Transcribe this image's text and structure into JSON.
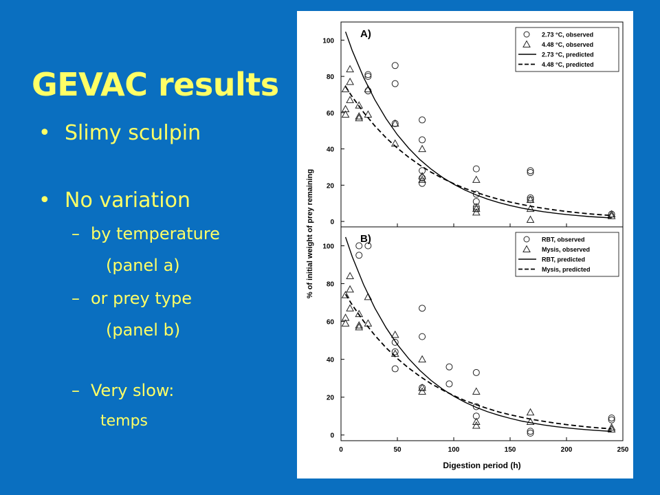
{
  "slide": {
    "title": "GEVAC results",
    "bullets": [
      {
        "level": 1,
        "marker": "•",
        "text": "Slimy sculpin"
      },
      {
        "level": 1,
        "marker": "•",
        "text": "No variation"
      },
      {
        "level": 2,
        "marker": "–",
        "text": "by temperature"
      },
      {
        "level": 2,
        "marker": "",
        "text": "(panel a)"
      },
      {
        "level": 2,
        "marker": "–",
        "text": "or prey type"
      },
      {
        "level": 2,
        "marker": "",
        "text": "(panel b)"
      },
      {
        "level": 2,
        "marker": "–",
        "text": "Very slow:"
      },
      {
        "level": 3,
        "marker": "",
        "text": "temps"
      }
    ],
    "colors": {
      "background": "#0a6fc0",
      "text": "#ffff66"
    }
  },
  "chart_data": [
    {
      "type": "scatter",
      "panel_label": "A)",
      "xlabel": "Digestion period (h)",
      "ylabel": "% of initial weight of prey remaining",
      "xlim": [
        0,
        250
      ],
      "ylim": [
        -3,
        110
      ],
      "yticks": [
        0,
        20,
        40,
        60,
        80,
        100
      ],
      "xticks": [
        0,
        50,
        100,
        150,
        200,
        250
      ],
      "show_x_tick_labels": false,
      "legend_position": "top-right",
      "series": [
        {
          "name": "2.73 °C, observed",
          "marker": "circle",
          "points": [
            [
              24,
              81
            ],
            [
              24,
              80
            ],
            [
              24,
              72
            ],
            [
              48,
              86
            ],
            [
              48,
              76
            ],
            [
              48,
              54
            ],
            [
              72,
              56
            ],
            [
              72,
              45
            ],
            [
              72,
              28
            ],
            [
              72,
              24
            ],
            [
              72,
              21
            ],
            [
              120,
              29
            ],
            [
              120,
              15
            ],
            [
              120,
              11
            ],
            [
              120,
              8
            ],
            [
              120,
              7
            ],
            [
              168,
              28
            ],
            [
              168,
              27
            ],
            [
              168,
              13
            ],
            [
              168,
              12
            ],
            [
              240,
              4
            ]
          ]
        },
        {
          "name": "4.48 °C, observed",
          "marker": "triangle",
          "points": [
            [
              4,
              73
            ],
            [
              4,
              62
            ],
            [
              4,
              59
            ],
            [
              8,
              84
            ],
            [
              8,
              77
            ],
            [
              8,
              67
            ],
            [
              16,
              64
            ],
            [
              16,
              58
            ],
            [
              16,
              57
            ],
            [
              24,
              73
            ],
            [
              24,
              59
            ],
            [
              48,
              54
            ],
            [
              48,
              43
            ],
            [
              72,
              40
            ],
            [
              72,
              25
            ],
            [
              72,
              23
            ],
            [
              120,
              23
            ],
            [
              120,
              7
            ],
            [
              120,
              5
            ],
            [
              168,
              12
            ],
            [
              168,
              7
            ],
            [
              168,
              1
            ],
            [
              240,
              4
            ],
            [
              240,
              3
            ]
          ]
        },
        {
          "name": "2.73 °C, predicted",
          "style": "solid",
          "x": [
            4,
            10,
            20,
            30,
            40,
            50,
            60,
            70,
            80,
            90,
            100,
            110,
            120,
            130,
            140,
            150,
            160,
            170,
            180,
            190,
            200,
            210,
            220,
            230,
            240
          ],
          "values": [
            104.6,
            94.2,
            79.5,
            67.1,
            56.7,
            47.8,
            40.4,
            34.1,
            28.8,
            24.3,
            20.5,
            17.3,
            14.6,
            12.3,
            10.4,
            8.8,
            7.4,
            6.3,
            5.3,
            4.5,
            3.8,
            3.2,
            2.7,
            2.3,
            1.9
          ]
        },
        {
          "name": "4.48 °C, predicted",
          "style": "dashed",
          "x": [
            4,
            10,
            20,
            30,
            40,
            50,
            60,
            70,
            80,
            90,
            100,
            110,
            120,
            130,
            140,
            150,
            160,
            170,
            180,
            190,
            200,
            210,
            220,
            230,
            240
          ],
          "values": [
            74.4,
            68.7,
            60.2,
            52.7,
            46.1,
            40.4,
            35.4,
            31.0,
            27.1,
            23.8,
            20.8,
            18.2,
            16.0,
            14.0,
            12.2,
            10.7,
            9.4,
            8.2,
            7.2,
            6.3,
            5.5,
            4.8,
            4.2,
            3.7,
            3.3
          ]
        }
      ]
    },
    {
      "type": "scatter",
      "panel_label": "B)",
      "xlabel": "Digestion period (h)",
      "ylabel": "% of initial weight of prey remaining",
      "xlim": [
        0,
        250
      ],
      "ylim": [
        -3,
        110
      ],
      "yticks": [
        0,
        20,
        40,
        60,
        80,
        100
      ],
      "xticks": [
        0,
        50,
        100,
        150,
        200,
        250
      ],
      "show_x_tick_labels": true,
      "legend_position": "top-right",
      "series": [
        {
          "name": "RBT, observed",
          "marker": "circle",
          "points": [
            [
              16,
              100
            ],
            [
              16,
              95
            ],
            [
              24,
              100
            ],
            [
              48,
              49
            ],
            [
              48,
              44
            ],
            [
              48,
              35
            ],
            [
              72,
              67
            ],
            [
              72,
              52
            ],
            [
              72,
              25
            ],
            [
              96,
              36
            ],
            [
              96,
              27
            ],
            [
              120,
              33
            ],
            [
              120,
              15
            ],
            [
              120,
              10
            ],
            [
              168,
              2
            ],
            [
              168,
              1
            ],
            [
              240,
              9
            ],
            [
              240,
              8
            ]
          ]
        },
        {
          "name": "Mysis, observed",
          "marker": "triangle",
          "points": [
            [
              4,
              74
            ],
            [
              4,
              62
            ],
            [
              4,
              59
            ],
            [
              8,
              84
            ],
            [
              8,
              77
            ],
            [
              8,
              67
            ],
            [
              16,
              64
            ],
            [
              16,
              58
            ],
            [
              16,
              57
            ],
            [
              24,
              73
            ],
            [
              24,
              59
            ],
            [
              48,
              53
            ],
            [
              48,
              43
            ],
            [
              72,
              40
            ],
            [
              72,
              25
            ],
            [
              72,
              23
            ],
            [
              120,
              23
            ],
            [
              120,
              7
            ],
            [
              120,
              5
            ],
            [
              168,
              12
            ],
            [
              168,
              7
            ],
            [
              240,
              4
            ],
            [
              240,
              3
            ]
          ]
        },
        {
          "name": "RBT, predicted",
          "style": "solid",
          "x": [
            4,
            10,
            20,
            30,
            40,
            50,
            60,
            70,
            80,
            90,
            100,
            110,
            120,
            130,
            140,
            150,
            160,
            170,
            180,
            190,
            200,
            210,
            220,
            230,
            240
          ],
          "values": [
            104.6,
            94.2,
            79.5,
            67.1,
            56.7,
            47.8,
            40.4,
            34.1,
            28.8,
            24.3,
            20.5,
            17.3,
            14.6,
            12.3,
            10.4,
            8.8,
            7.4,
            6.3,
            5.3,
            4.5,
            3.8,
            3.2,
            2.7,
            2.3,
            1.9
          ]
        },
        {
          "name": "Mysis, predicted",
          "style": "dashed",
          "x": [
            4,
            10,
            20,
            30,
            40,
            50,
            60,
            70,
            80,
            90,
            100,
            110,
            120,
            130,
            140,
            150,
            160,
            170,
            180,
            190,
            200,
            210,
            220,
            230,
            240
          ],
          "values": [
            74.4,
            68.7,
            60.2,
            52.7,
            46.1,
            40.4,
            35.4,
            31.0,
            27.1,
            23.8,
            20.8,
            18.2,
            16.0,
            14.0,
            12.2,
            10.7,
            9.4,
            8.2,
            7.2,
            6.3,
            5.5,
            4.8,
            4.2,
            3.7,
            3.3
          ]
        }
      ]
    }
  ]
}
